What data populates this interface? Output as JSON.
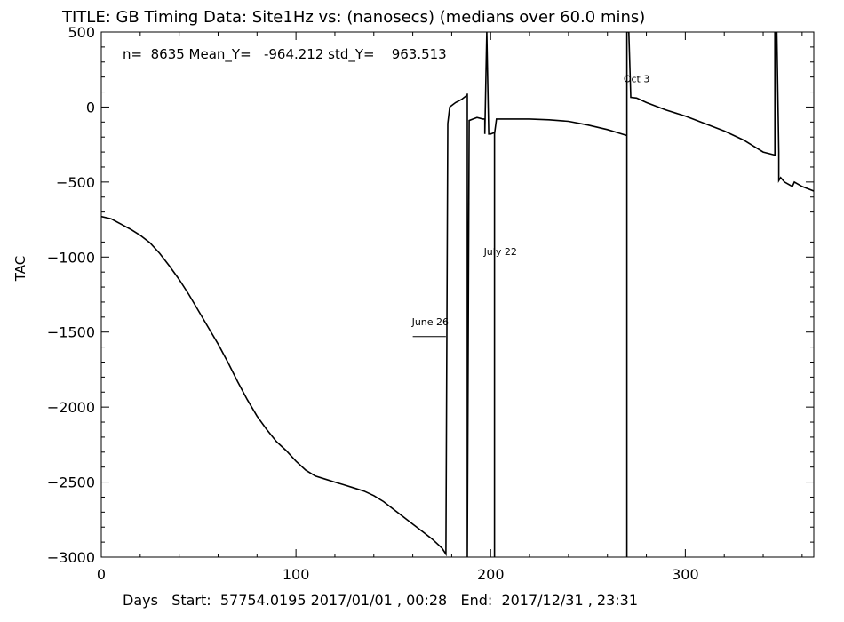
{
  "header": {
    "title": "TITLE: GB Timing Data: Site1Hz vs: (nanosecs) (medians over 60.0 mins)",
    "stats": "n=  8635 Mean_Y=   -964.212 std_Y=    963.513"
  },
  "footer": {
    "text": "Days   Start:  57754.0195 2017/01/01 , 00:28   End:  2017/12/31 , 23:31"
  },
  "chart_data": {
    "type": "line",
    "title": "TITLE: GB Timing Data: Site1Hz vs: (nanosecs) (medians over 60.0 mins)",
    "xlabel": "Days",
    "ylabel": "TAC",
    "xlim": [
      0,
      366
    ],
    "ylim": [
      -3000,
      500
    ],
    "xticks": [
      0,
      100,
      200,
      300
    ],
    "xtick_labels": [
      "0",
      "100",
      "200",
      "300"
    ],
    "yticks": [
      500,
      0,
      -500,
      -1000,
      -1500,
      -2000,
      -2500,
      -3000
    ],
    "ytick_labels": [
      "500",
      "0",
      "−500",
      "−1000",
      "−1500",
      "−2000",
      "−2500",
      "−3000"
    ],
    "grid": false,
    "series": [
      {
        "x": [
          0,
          5,
          10,
          15,
          20,
          25,
          30,
          35,
          40,
          45,
          50,
          55,
          60,
          65,
          70,
          75,
          80,
          85,
          90,
          95,
          100,
          105,
          110,
          115,
          120,
          125,
          130,
          135,
          140,
          145,
          150,
          155,
          160,
          165,
          170,
          175,
          177,
          178,
          179,
          182,
          185,
          188,
          188,
          188,
          189,
          191,
          193,
          196,
          197,
          197,
          198,
          199,
          200,
          201,
          202,
          202,
          202,
          203,
          204,
          206,
          210,
          220,
          230,
          240,
          250,
          260,
          265,
          270,
          270,
          270,
          271,
          272,
          275,
          280,
          290,
          300,
          310,
          320,
          330,
          340,
          346,
          346,
          347,
          348,
          348,
          349,
          351,
          355,
          356,
          360,
          366
        ],
        "y": [
          -730,
          -745,
          -780,
          -815,
          -855,
          -905,
          -975,
          -1060,
          -1150,
          -1250,
          -1360,
          -1470,
          -1580,
          -1700,
          -1830,
          -1950,
          -2060,
          -2150,
          -2230,
          -2290,
          -2360,
          -2420,
          -2460,
          -2480,
          -2500,
          -2520,
          -2540,
          -2560,
          -2590,
          -2630,
          -2680,
          -2730,
          -2780,
          -2830,
          -2880,
          -2940,
          -2980,
          -110,
          0,
          30,
          50,
          80,
          90,
          -3000,
          -90,
          -80,
          -70,
          -80,
          -80,
          -180,
          500,
          -180,
          -180,
          -175,
          -170,
          -3000,
          -180,
          -80,
          -80,
          -80,
          -80,
          -80,
          -85,
          -95,
          -120,
          -150,
          -170,
          -190,
          -3000,
          500,
          500,
          65,
          60,
          30,
          -20,
          -60,
          -110,
          -160,
          -220,
          -300,
          -320,
          500,
          500,
          -300,
          -490,
          -470,
          -500,
          -530,
          -500,
          -530,
          -560
        ]
      }
    ],
    "annotations": [
      {
        "text": "June 26",
        "x": 169,
        "y": -1455
      },
      {
        "text": "July 22",
        "x": 205,
        "y": -985
      },
      {
        "text": "Oct 3",
        "x": 275,
        "y": 165
      }
    ],
    "annotation_lines": [
      {
        "x1": 160,
        "y1": -1530,
        "x2": 177,
        "y2": -1530
      }
    ]
  }
}
